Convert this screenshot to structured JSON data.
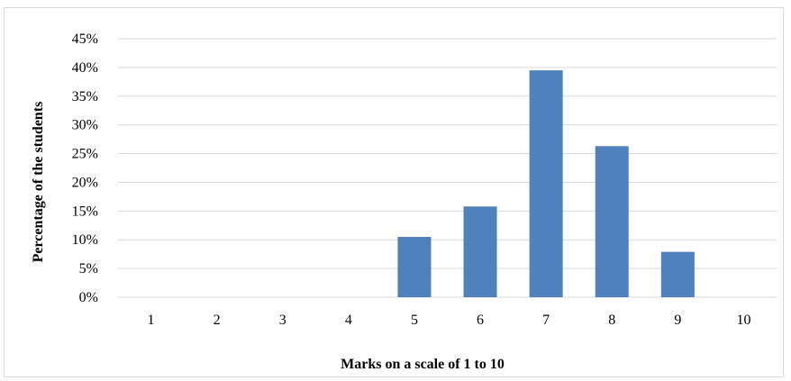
{
  "chart_data": {
    "type": "bar",
    "categories": [
      "1",
      "2",
      "3",
      "4",
      "5",
      "6",
      "7",
      "8",
      "9",
      "10"
    ],
    "series": [
      {
        "values": [
          0,
          0,
          0,
          0,
          10.5,
          15.8,
          39.5,
          26.3,
          7.9,
          0
        ]
      }
    ],
    "xlabel": "Marks on a scale of 1 to 10",
    "ylabel": "Percentage of the students",
    "ylim": [
      0,
      45
    ],
    "yticks": [
      "0%",
      "5%",
      "10%",
      "15%",
      "20%",
      "25%",
      "30%",
      "35%",
      "40%",
      "45%"
    ],
    "grid": true,
    "legend": "none",
    "bar_color": "#4f81bd",
    "grid_color": "#d9d9d9"
  }
}
